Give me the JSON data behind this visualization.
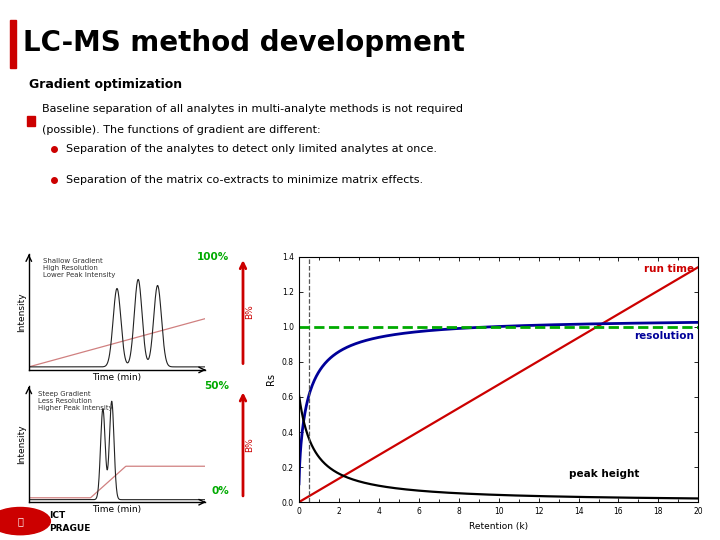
{
  "title": "LC-MS method development",
  "title_bar_color": "#cc0000",
  "title_color": "#000000",
  "background_color": "#ffffff",
  "top_bar_color": "#cc0000",
  "section_title": "Gradient optimization",
  "bullet_color": "#cc0000",
  "bullet_text1": "Baseline separation of all analytes in multi-analyte methods is not required",
  "bullet_text2": "(possible). The functions of gradient are different:",
  "sub_bullet1": "Separation of the analytes to detect only limited analytes at once.",
  "sub_bullet2": "Separation of the matrix co-extracts to minimize matrix effects.",
  "shallow_label": "Shallow Gradient\nHigh Resolution\nLower Peak Intensity",
  "steep_label": "Steep Gradient\nLess Resolution\nHigher Peak Intensity",
  "time_label": "Time (min)",
  "intensity_label": "Intensity",
  "B_label": "B%",
  "retention_label": "Retention (k)",
  "Rs_label": "Rs",
  "run_time_label": "run time",
  "resolution_label": "resolution",
  "peak_height_label": "peak height",
  "pct_100": "100%",
  "pct_50": "50%",
  "pct_0": "0%",
  "green_color": "#00aa00",
  "red_line_color": "#cc0000",
  "blue_line_color": "#000099",
  "black_line_color": "#000000",
  "arrow_color": "#cc0000",
  "logo_color": "#cc0000"
}
